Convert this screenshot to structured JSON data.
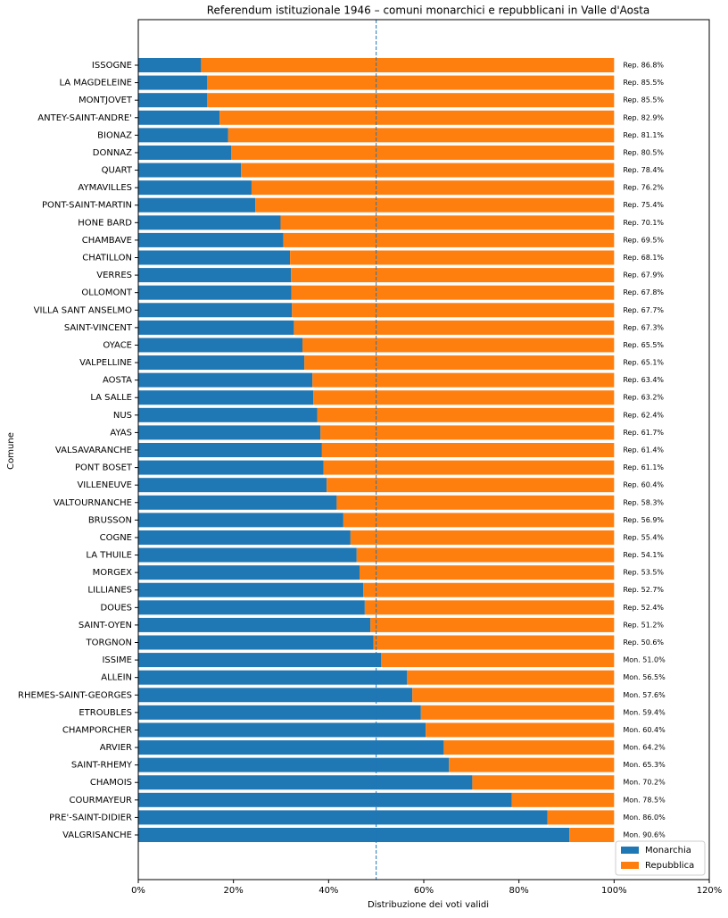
{
  "chart_data": {
    "type": "stacked-barh",
    "title": "Referendum istituzionale 1946 – comuni monarchici e repubblicani in Valle d'Aosta",
    "xlabel": "Distribuzione dei voti validi",
    "ylabel": "Comune",
    "categories": [
      "ISSOGNE",
      "LA MAGDELEINE",
      "MONTJOVET",
      "ANTEY-SAINT-ANDRE'",
      "BIONAZ",
      "DONNAZ",
      "QUART",
      "AYMAVILLES",
      "PONT-SAINT-MARTIN",
      "HONE BARD",
      "CHAMBAVE",
      "CHATILLON",
      "VERRES",
      "OLLOMONT",
      "VILLA SANT ANSELMO",
      "SAINT-VINCENT",
      "OYACE",
      "VALPELLINE",
      "AOSTA",
      "LA SALLE",
      "NUS",
      "AYAS",
      "VALSAVARANCHE",
      "PONT BOSET",
      "VILLENEUVE",
      "VALTOURNANCHE",
      "BRUSSON",
      "COGNE",
      "LA THUILE",
      "MORGEX",
      "LILLIANES",
      "DOUES",
      "SAINT-OYEN",
      "TORGNON",
      "ISSIME",
      "ALLEIN",
      "RHEMES-SAINT-GEORGES",
      "ETROUBLES",
      "CHAMPORCHER",
      "ARVIER",
      "SAINT-RHEMY",
      "CHAMOIS",
      "COURMAYEUR",
      "PRE'-SAINT-DIDIER",
      "VALGRISANCHE"
    ],
    "series": [
      {
        "name": "Monarchia",
        "color": "#1f77b4",
        "values": [
          13.2,
          14.5,
          14.5,
          17.1,
          18.9,
          19.5,
          21.6,
          23.8,
          24.6,
          29.9,
          30.5,
          31.9,
          32.1,
          32.2,
          32.3,
          32.7,
          34.5,
          34.9,
          36.6,
          36.8,
          37.6,
          38.3,
          38.6,
          38.9,
          39.6,
          41.7,
          43.1,
          44.6,
          45.9,
          46.5,
          47.3,
          47.6,
          48.8,
          49.4,
          51.0,
          56.5,
          57.6,
          59.4,
          60.4,
          64.2,
          65.3,
          70.2,
          78.5,
          86.0,
          90.6
        ],
        "value_labels": [
          null,
          null,
          null,
          null,
          null,
          null,
          null,
          null,
          null,
          null,
          null,
          null,
          null,
          null,
          null,
          null,
          null,
          null,
          null,
          null,
          null,
          null,
          null,
          null,
          null,
          null,
          null,
          null,
          null,
          null,
          null,
          null,
          null,
          null,
          "Mon. 51.0%",
          "Mon. 56.5%",
          "Mon. 57.6%",
          "Mon. 59.4%",
          "Mon. 60.4%",
          "Mon. 64.2%",
          "Mon. 65.3%",
          "Mon. 70.2%",
          "Mon. 78.5%",
          "Mon. 86.0%",
          "Mon. 90.6%"
        ]
      },
      {
        "name": "Repubblica",
        "color": "#ff7f0e",
        "values": [
          86.8,
          85.5,
          85.5,
          82.9,
          81.1,
          80.5,
          78.4,
          76.2,
          75.4,
          70.1,
          69.5,
          68.1,
          67.9,
          67.8,
          67.7,
          67.3,
          65.5,
          65.1,
          63.4,
          63.2,
          62.4,
          61.7,
          61.4,
          61.1,
          60.4,
          58.3,
          56.9,
          55.4,
          54.1,
          53.5,
          52.7,
          52.4,
          51.2,
          50.6,
          49.0,
          43.5,
          42.4,
          40.6,
          39.6,
          35.8,
          34.7,
          29.8,
          21.5,
          14.0,
          9.4
        ],
        "value_labels": [
          "Rep. 86.8%",
          "Rep. 85.5%",
          "Rep. 85.5%",
          "Rep. 82.9%",
          "Rep. 81.1%",
          "Rep. 80.5%",
          "Rep. 78.4%",
          "Rep. 76.2%",
          "Rep. 75.4%",
          "Rep. 70.1%",
          "Rep. 69.5%",
          "Rep. 68.1%",
          "Rep. 67.9%",
          "Rep. 67.8%",
          "Rep. 67.7%",
          "Rep. 67.3%",
          "Rep. 65.5%",
          "Rep. 65.1%",
          "Rep. 63.4%",
          "Rep. 63.2%",
          "Rep. 62.4%",
          "Rep. 61.7%",
          "Rep. 61.4%",
          "Rep. 61.1%",
          "Rep. 60.4%",
          "Rep. 58.3%",
          "Rep. 56.9%",
          "Rep. 55.4%",
          "Rep. 54.1%",
          "Rep. 53.5%",
          "Rep. 52.7%",
          "Rep. 52.4%",
          "Rep. 51.2%",
          "Rep. 50.6%",
          null,
          null,
          null,
          null,
          null,
          null,
          null,
          null,
          null,
          null,
          null
        ]
      }
    ],
    "xlim": [
      0,
      120
    ],
    "xticks": [
      {
        "value": 0,
        "label": "0%"
      },
      {
        "value": 20,
        "label": "20%"
      },
      {
        "value": 40,
        "label": "40%"
      },
      {
        "value": 60,
        "label": "60%"
      },
      {
        "value": 80,
        "label": "80%"
      },
      {
        "value": 100,
        "label": "100%"
      },
      {
        "value": 120,
        "label": "120%"
      }
    ],
    "vline": 50,
    "legend": "lower right"
  }
}
